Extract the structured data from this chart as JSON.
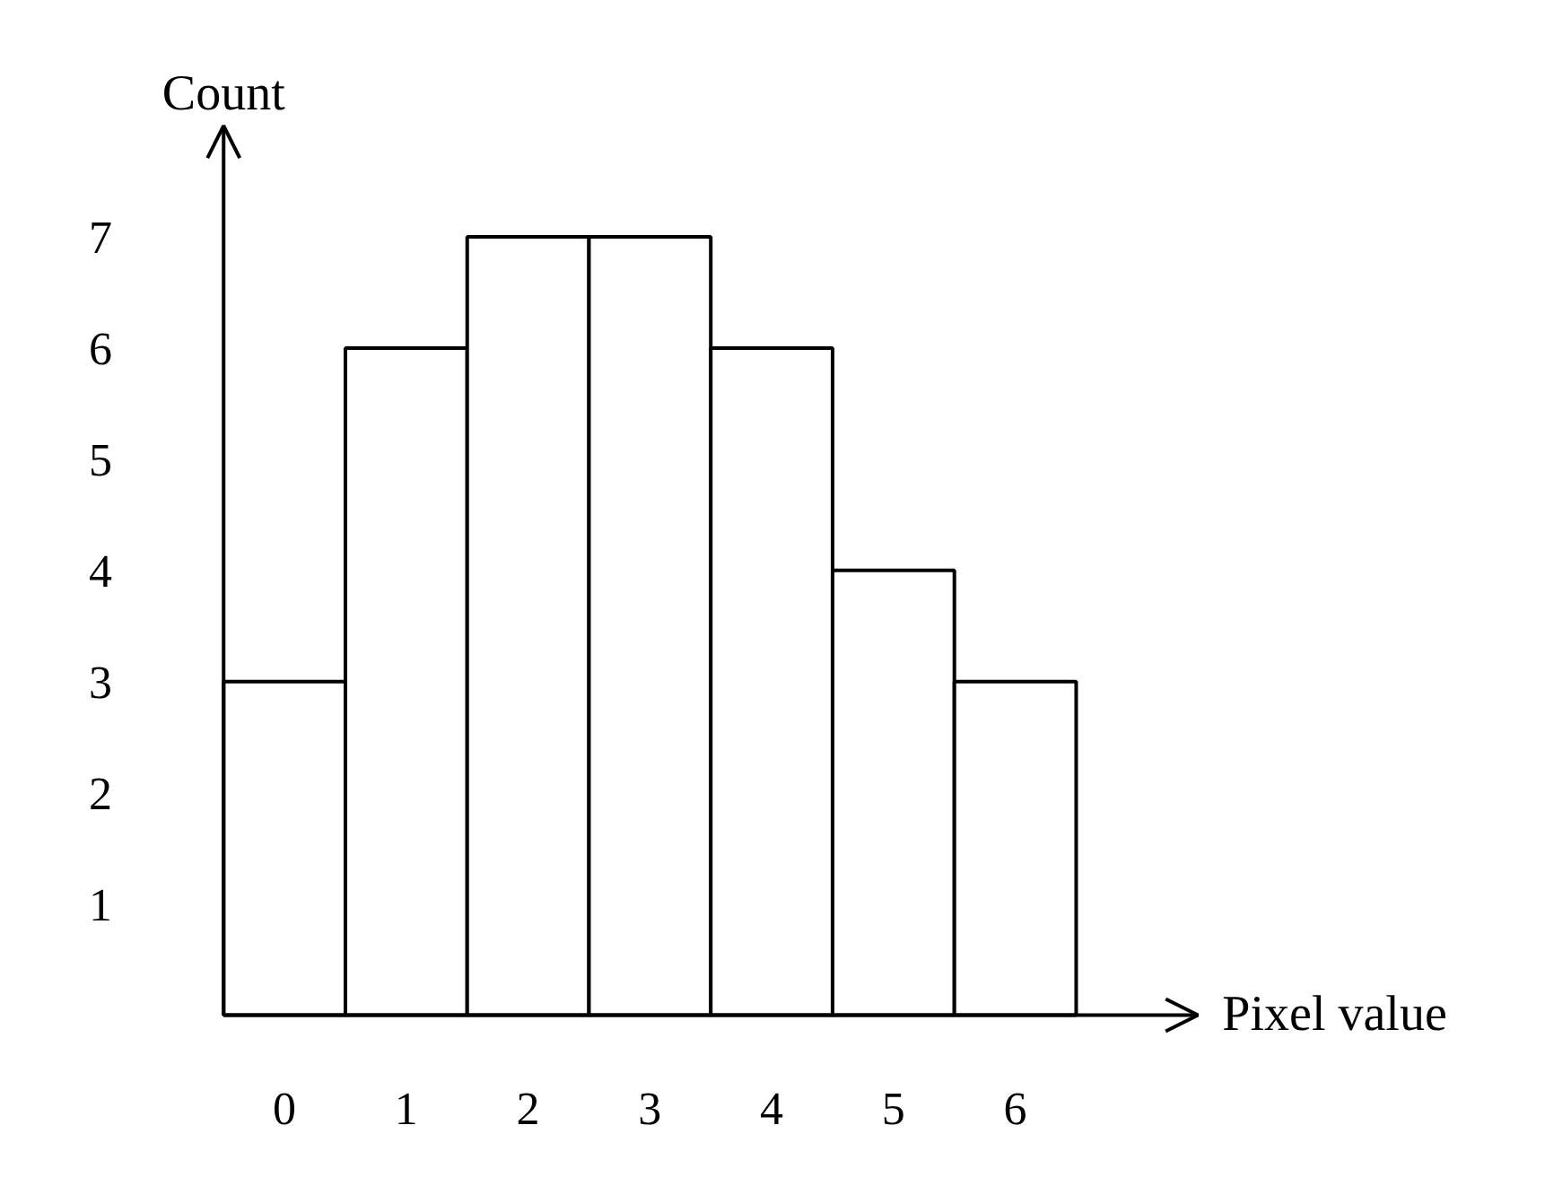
{
  "chart_data": {
    "type": "bar",
    "xlabel": "Pixel value",
    "ylabel": "Count",
    "categories": [
      "0",
      "1",
      "2",
      "3",
      "4",
      "5",
      "6"
    ],
    "values": [
      3,
      6,
      7,
      7,
      6,
      4,
      3
    ],
    "color": "#ffffff",
    "ylim": [
      0,
      8
    ],
    "yticks": [
      1,
      2,
      3,
      4,
      5,
      6,
      7
    ],
    "grid": false
  }
}
